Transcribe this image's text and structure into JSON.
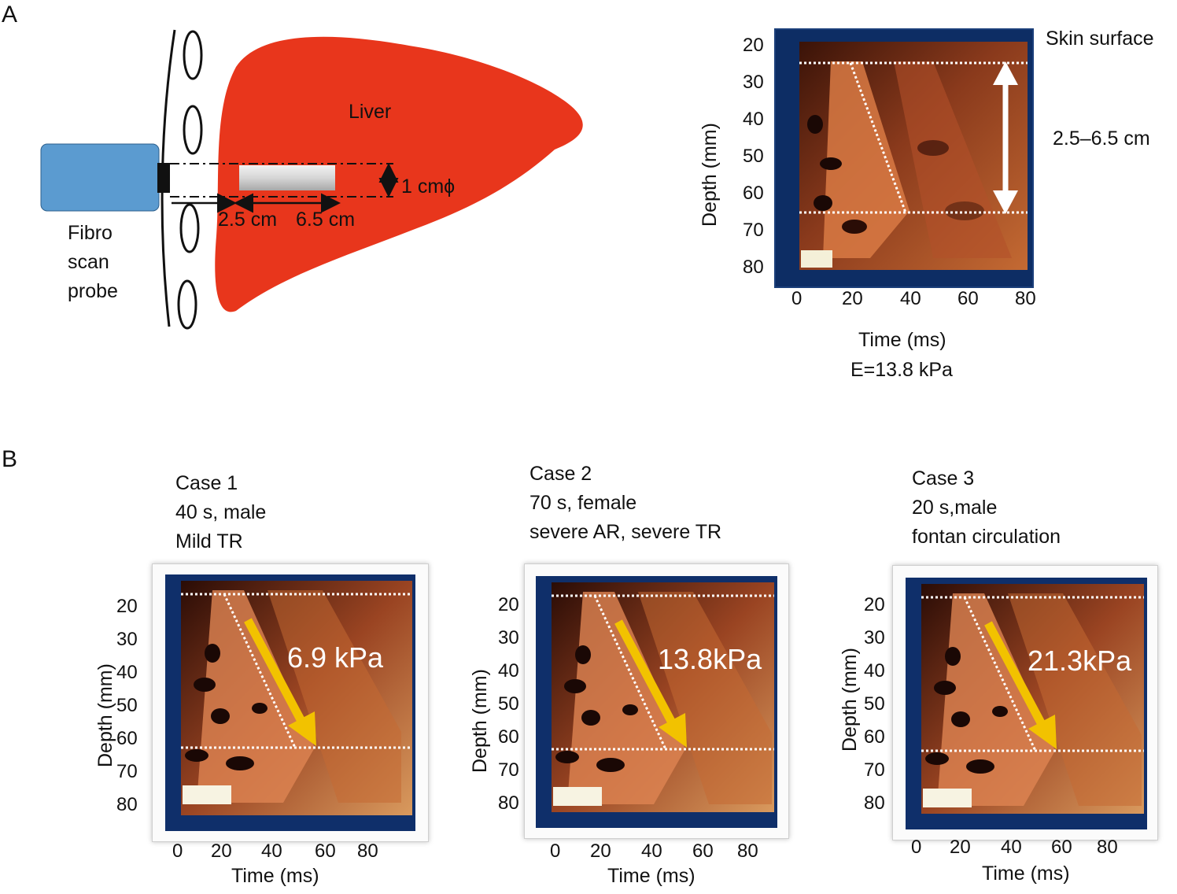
{
  "panelA": {
    "letter": "A",
    "liver_label": "Liver",
    "probe_label": [
      "Fibro",
      "scan",
      "probe"
    ],
    "diameter_label": "1 cmϕ",
    "depth_start_label": "2.5 cm",
    "depth_end_label": "6.5 cm",
    "elastogram": {
      "skin_label": "Skin surface",
      "range_label": "2.5–6.5 cm",
      "y_axis_label": "Depth (mm)",
      "y_ticks": [
        "20",
        "30",
        "40",
        "50",
        "60",
        "70",
        "80"
      ],
      "x_ticks": [
        "0",
        "20",
        "40",
        "60",
        "80"
      ],
      "x_axis_label": "Time (ms)",
      "stiffness_label": "E=13.8 kPa"
    },
    "colors": {
      "liver": "#e8361c",
      "probe": "#5b9bd0",
      "arrow_white": "#ffffff"
    }
  },
  "panelB": {
    "letter": "B",
    "cases": [
      {
        "title": "Case 1",
        "line2": "40 s, male",
        "line3": "Mild TR",
        "value": "6.9 kPa",
        "y_axis_label": "Depth (mm)",
        "y_ticks": [
          "20",
          "30",
          "40",
          "50",
          "60",
          "70",
          "80"
        ],
        "x_ticks": [
          "0",
          "20",
          "40",
          "60",
          "80"
        ],
        "x_axis_label": "Time (ms)"
      },
      {
        "title": "Case 2",
        "line2": "70 s, female",
        "line3": "severe AR, severe TR",
        "value": "13.8kPa",
        "y_axis_label": "Depth (mm)",
        "y_ticks": [
          "20",
          "30",
          "40",
          "50",
          "60",
          "70",
          "80"
        ],
        "x_ticks": [
          "0",
          "20",
          "40",
          "60",
          "80"
        ],
        "x_axis_label": "Time (ms)"
      },
      {
        "title": "Case 3",
        "line2": "20 s,male",
        "line3": "fontan circulation",
        "value": "21.3kPa",
        "y_axis_label": "Depth (mm)",
        "y_ticks": [
          "20",
          "30",
          "40",
          "50",
          "60",
          "70",
          "80"
        ],
        "x_ticks": [
          "0",
          "20",
          "40",
          "60",
          "80"
        ],
        "x_axis_label": "Time (ms)"
      }
    ],
    "colors": {
      "arrow": "#f2c200"
    }
  }
}
